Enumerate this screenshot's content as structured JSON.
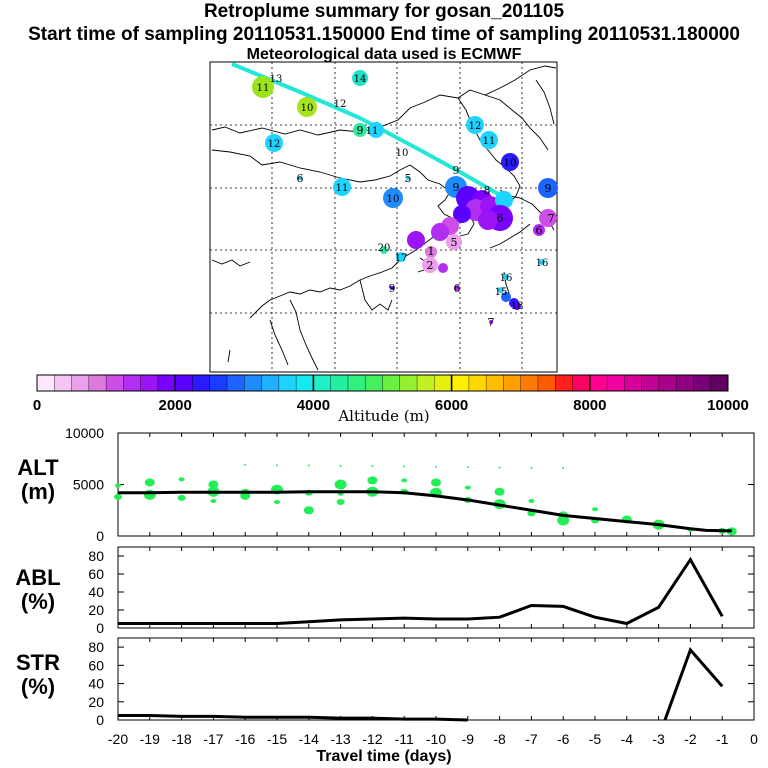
{
  "header": {
    "title": "Retroplume summary for gosan_201105",
    "sampling": "Start time of sampling 20110531.150000     End time of sampling 20110531.180000",
    "met": "Meteorological data used is ECMWF"
  },
  "colorbar": {
    "title": "Altitude (m)",
    "ticks": [
      "0",
      "2000",
      "4000",
      "6000",
      "8000",
      "10000"
    ],
    "min": 0,
    "max": 10000,
    "colors": [
      "#ffe8ff",
      "#f5c6f5",
      "#eaa0ea",
      "#de7ade",
      "#cc4ee6",
      "#b22ef0",
      "#9a14f5",
      "#7a00ff",
      "#5a00ff",
      "#2a1aff",
      "#1a3cff",
      "#1c63ff",
      "#1e8cff",
      "#1fb0ff",
      "#1ed4ff",
      "#12eaf0",
      "#1ff0c8",
      "#22f0a0",
      "#30f080",
      "#45f060",
      "#6af040",
      "#95f030",
      "#c2f020",
      "#e6f010",
      "#ffef00",
      "#ffd800",
      "#ffbd00",
      "#ffa000",
      "#ff7a00",
      "#ff5a00",
      "#ff2020",
      "#ff0060",
      "#ff0090",
      "#f000a0",
      "#d8009a",
      "#c00090",
      "#a80088",
      "#900080",
      "#780078",
      "#600060"
    ]
  },
  "map": {
    "trajectory_labels": [
      {
        "t": "13",
        "x": 276,
        "y": 78
      },
      {
        "t": "11",
        "x": 263,
        "y": 87
      },
      {
        "t": "14",
        "x": 360,
        "y": 78
      },
      {
        "t": "10",
        "x": 307,
        "y": 107
      },
      {
        "t": "12",
        "x": 340,
        "y": 103
      },
      {
        "t": "12",
        "x": 475,
        "y": 125
      },
      {
        "t": "9",
        "x": 360,
        "y": 130
      },
      {
        "t": "11",
        "x": 372,
        "y": 130
      },
      {
        "t": "12",
        "x": 274,
        "y": 143
      },
      {
        "t": "11",
        "x": 489,
        "y": 140
      },
      {
        "t": "10",
        "x": 402,
        "y": 152
      },
      {
        "t": "10",
        "x": 510,
        "y": 162
      },
      {
        "t": "9",
        "x": 456,
        "y": 170
      },
      {
        "t": "6",
        "x": 300,
        "y": 178
      },
      {
        "t": "5",
        "x": 408,
        "y": 178
      },
      {
        "t": "11",
        "x": 342,
        "y": 187
      },
      {
        "t": "9",
        "x": 456,
        "y": 187
      },
      {
        "t": "8",
        "x": 487,
        "y": 190
      },
      {
        "t": "9",
        "x": 548,
        "y": 188
      },
      {
        "t": "10",
        "x": 393,
        "y": 198
      },
      {
        "t": "7",
        "x": 551,
        "y": 218
      },
      {
        "t": "6",
        "x": 539,
        "y": 230
      },
      {
        "t": "6",
        "x": 500,
        "y": 218
      },
      {
        "t": "5",
        "x": 454,
        "y": 242
      },
      {
        "t": "20",
        "x": 384,
        "y": 247
      },
      {
        "t": "1",
        "x": 431,
        "y": 251
      },
      {
        "t": "17",
        "x": 401,
        "y": 257
      },
      {
        "t": "16",
        "x": 542,
        "y": 262
      },
      {
        "t": "2",
        "x": 430,
        "y": 265
      },
      {
        "t": "16",
        "x": 506,
        "y": 277
      },
      {
        "t": "9",
        "x": 392,
        "y": 288
      },
      {
        "t": "6",
        "x": 457,
        "y": 288
      },
      {
        "t": "15",
        "x": 501,
        "y": 291
      },
      {
        "t": "18",
        "x": 517,
        "y": 305
      },
      {
        "t": "7",
        "x": 491,
        "y": 322
      }
    ]
  },
  "chart_data": [
    {
      "type": "scatter+line",
      "name": "ALT",
      "ylabel": "ALT (m)",
      "xlim": [
        -20,
        0
      ],
      "ylim": [
        0,
        10000
      ],
      "yticks": [
        0,
        5000,
        10000
      ],
      "line": {
        "x": [
          -20,
          -19,
          -18,
          -17,
          -16,
          -15,
          -14,
          -13,
          -12,
          -11,
          -10,
          -9,
          -8,
          -7,
          -6,
          -5,
          -4,
          -3,
          -2,
          -1.5,
          -0.7
        ],
        "y": [
          4200,
          4200,
          4250,
          4250,
          4250,
          4250,
          4300,
          4300,
          4300,
          4200,
          3900,
          3500,
          3000,
          2500,
          2000,
          1700,
          1400,
          1100,
          700,
          550,
          500
        ]
      },
      "points": {
        "x": [
          -20,
          -20,
          -19,
          -19,
          -18,
          -18,
          -17,
          -17,
          -17,
          -16,
          -16,
          -15,
          -15,
          -14,
          -14,
          -13,
          -13,
          -13,
          -12,
          -12,
          -11,
          -11,
          -10,
          -10,
          -9,
          -9,
          -8,
          -8,
          -7,
          -7,
          -6,
          -6,
          -5,
          -5,
          -4,
          -3,
          -2,
          -1,
          -0.7
        ],
        "y": [
          4900,
          3800,
          5200,
          4000,
          5500,
          3700,
          5000,
          4300,
          3400,
          4300,
          3900,
          4500,
          3300,
          4200,
          2500,
          5000,
          4100,
          3300,
          5400,
          4300,
          5400,
          4300,
          5200,
          4200,
          4700,
          3500,
          4300,
          3100,
          3400,
          2200,
          2000,
          1500,
          2600,
          1500,
          1600,
          1100,
          600,
          500,
          450
        ],
        "color": "#22ee55"
      }
    },
    {
      "type": "line",
      "name": "ABL",
      "ylabel": "ABL (%)",
      "xlim": [
        -20,
        0
      ],
      "ylim": [
        0,
        90
      ],
      "yticks": [
        0,
        20,
        40,
        60,
        80
      ],
      "x": [
        -20,
        -19,
        -18,
        -17,
        -16,
        -15,
        -14,
        -13,
        -12,
        -11,
        -10,
        -9,
        -8,
        -7,
        -6,
        -5,
        -4,
        -3,
        -2,
        -1
      ],
      "y": [
        5,
        5,
        5,
        5,
        5,
        5,
        7,
        9,
        10,
        11,
        10,
        10,
        12,
        25,
        24,
        12,
        5,
        23,
        76,
        13
      ]
    },
    {
      "type": "line",
      "name": "STR",
      "ylabel": "STR (%)",
      "xlim": [
        -20,
        0
      ],
      "ylim": [
        0,
        90
      ],
      "yticks": [
        0,
        20,
        40,
        60,
        80
      ],
      "xlabel": "Travel time (days)",
      "xticks": [
        "-20",
        "-19",
        "-18",
        "-17",
        "-16",
        "-15",
        "-14",
        "-13",
        "-12",
        "-11",
        "-10",
        "-9",
        "-8",
        "-7",
        "-6",
        "-5",
        "-4",
        "-3",
        "-2",
        "-1",
        "0"
      ],
      "segments": [
        {
          "x": [
            -20,
            -19,
            -18,
            -17,
            -16,
            -15,
            -14,
            -13,
            -12,
            -11,
            -10,
            -9
          ],
          "y": [
            5,
            5,
            4,
            4,
            3,
            3,
            3,
            2,
            2,
            1,
            1,
            0
          ]
        },
        {
          "x": [
            -2.8,
            -2,
            -1
          ],
          "y": [
            0,
            77,
            37
          ]
        }
      ]
    }
  ],
  "labels": {
    "alt_1": "ALT",
    "alt_2": "(m)",
    "abl_1": "ABL",
    "abl_2": "(%)",
    "str_1": "STR",
    "str_2": "(%)"
  }
}
